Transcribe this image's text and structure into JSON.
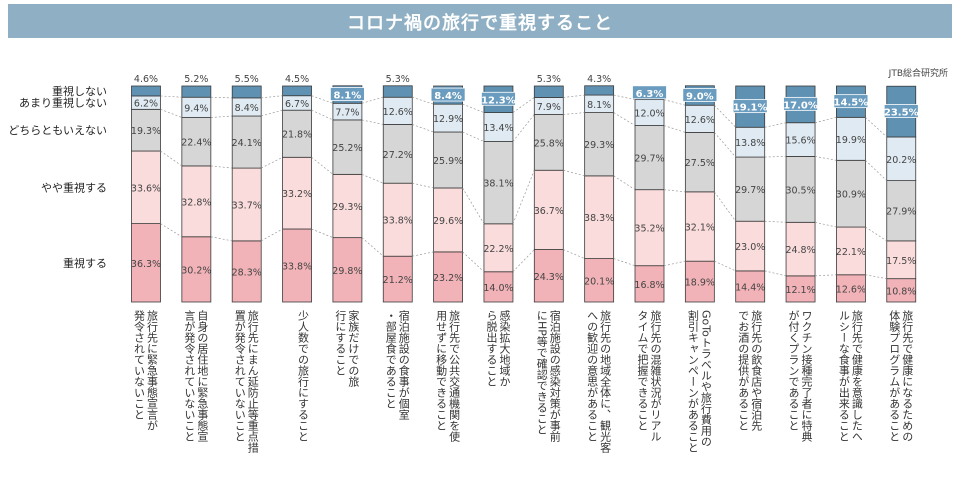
{
  "title": "コロナ禍の旅行で重視すること",
  "credit": "JTB総合研究所",
  "chart_data": {
    "type": "bar",
    "stacked": true,
    "orientation": "vertical",
    "value_unit": "%",
    "categories": [
      "旅行先に緊急事態宣言が発令されていないこと",
      "自身の居住地に緊急事態宣言が発令されていないこと",
      "旅行先にまん延防止等重点措置が発令されていないこと",
      "少人数での旅行にすること",
      "家族だけでの旅行にすること",
      "宿泊施設の食事が個室・部屋食であること",
      "旅行先で公共交通機関を使用せずに移動できること",
      "感染拡大地域から脱出すること",
      "宿泊施設の感染対策が事前にHP等で確認できること",
      "旅行先の地域全体に、観光客への歓迎の意思があること",
      "旅行先の混雑状況がリアルタイムで把握できること",
      "GoToトラベルや旅行費用の割引キャンペーンがあること",
      "旅行先の飲食店や宿泊先でお酒の提供があること",
      "ワクチン接種完了者に特典が付くプランであること",
      "旅行先で健康を意識したヘルシーな食事が出来ること",
      "旅行先で健康になるための体験プログラムがあること"
    ],
    "series": [
      {
        "name": "重視する",
        "color": "#f2b3b8",
        "values": [
          36.3,
          30.2,
          28.3,
          33.8,
          29.8,
          21.2,
          23.2,
          14.0,
          24.3,
          20.1,
          16.8,
          18.9,
          14.4,
          12.1,
          12.6,
          10.8
        ]
      },
      {
        "name": "やや重視する",
        "color": "#fbdcdc",
        "values": [
          33.6,
          32.8,
          33.7,
          33.2,
          29.3,
          33.8,
          29.6,
          22.2,
          36.7,
          38.3,
          35.2,
          32.1,
          23.0,
          24.8,
          22.1,
          17.5
        ]
      },
      {
        "name": "どちらともいえない",
        "color": "#d6d6d6",
        "values": [
          19.3,
          22.4,
          24.1,
          21.8,
          25.2,
          27.2,
          25.9,
          38.1,
          25.8,
          29.3,
          29.7,
          27.5,
          29.7,
          30.5,
          30.9,
          27.9
        ]
      },
      {
        "name": "あまり重視しない",
        "color": "#dfeaf2",
        "values": [
          6.2,
          9.4,
          8.4,
          6.7,
          7.7,
          12.6,
          12.9,
          13.4,
          7.9,
          8.1,
          12.0,
          12.6,
          13.8,
          15.6,
          19.9,
          20.2
        ]
      },
      {
        "name": "重視しない",
        "color": "#5f91b3",
        "values": [
          4.6,
          5.2,
          5.5,
          4.5,
          8.1,
          5.3,
          8.4,
          12.3,
          5.3,
          4.3,
          6.3,
          9.0,
          19.1,
          17.0,
          14.5,
          23.5
        ]
      }
    ],
    "data_labels": [
      [
        "36.3%",
        "33.6%",
        "19.3%",
        "6.2%",
        "4.6%"
      ],
      [
        "30.2%",
        "32.8%",
        "22.4%",
        "9.4%",
        "5.2%"
      ],
      [
        "28.3%",
        "33.7%",
        "24.1%",
        "8.4%",
        "5.5%"
      ],
      [
        "33.8%",
        "33.2%",
        "21.8%",
        "6.7%",
        "4.5%"
      ],
      [
        "29.8%",
        "29.3%",
        "25.2%",
        "7.7%",
        "8.1%"
      ],
      [
        "21.2%",
        "33.8%",
        "27.2%",
        "12.6%",
        "5.3%"
      ],
      [
        "23.2%",
        "29.6%",
        "25.9%",
        "12.9%",
        "8.4%"
      ],
      [
        "14.0%",
        "22.2%",
        "38.1%",
        "13.4%",
        "12.3%"
      ],
      [
        "24.3%",
        "36.7%",
        "25.8%",
        "7.9%",
        "5.3%"
      ],
      [
        "20.1%",
        "38.3%",
        "29.3%",
        "8.1%",
        "4.3%"
      ],
      [
        "16.8%",
        "35.2%",
        "29.7%",
        "12.0%",
        "6.3%"
      ],
      [
        "18.9%",
        "32.1%",
        "27.5%",
        "12.6%",
        "9.0%"
      ],
      [
        "14.4%",
        "23.0%",
        "29.7%",
        "13.8%",
        "19.1%"
      ],
      [
        "12.1%",
        "24.8%",
        "30.5%",
        "15.6%",
        "17.0%"
      ],
      [
        "12.6%",
        "22.1%",
        "30.9%",
        "19.9%",
        "14.5%"
      ],
      [
        "10.8%",
        "17.5%",
        "27.9%",
        "20.2%",
        "23.5%"
      ]
    ],
    "ylim": [
      0,
      100
    ],
    "legend_position": "left"
  }
}
